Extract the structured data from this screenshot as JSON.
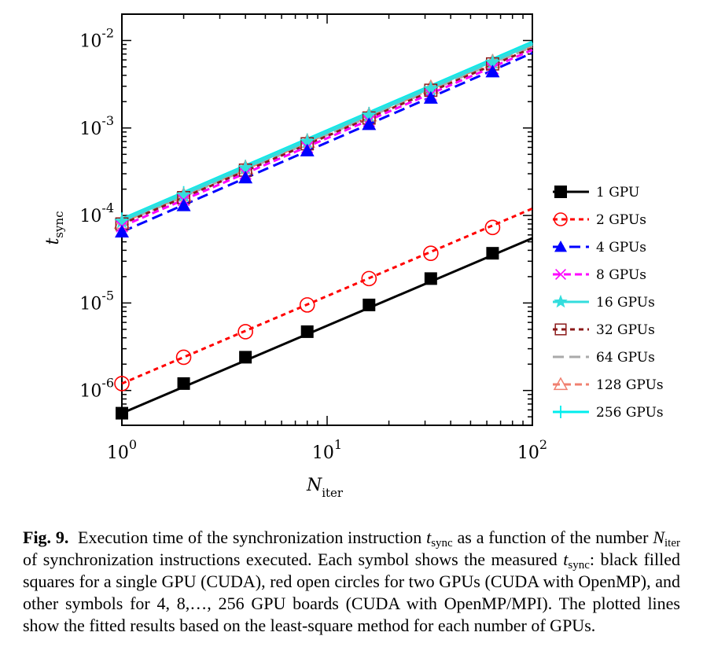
{
  "chart_data": {
    "type": "line",
    "xscale": "log",
    "yscale": "log",
    "xlim": [
      1,
      100
    ],
    "ylim": [
      4e-07,
      0.02
    ],
    "xticks": [
      {
        "value": 1,
        "base": "10",
        "exp": "0"
      },
      {
        "value": 10,
        "base": "10",
        "exp": "1"
      },
      {
        "value": 100,
        "base": "10",
        "exp": "2"
      }
    ],
    "yticks": [
      {
        "value": 1e-06,
        "base": "10",
        "exp": "-6"
      },
      {
        "value": 1e-05,
        "base": "10",
        "exp": "-5"
      },
      {
        "value": 0.0001,
        "base": "10",
        "exp": "-4"
      },
      {
        "value": 0.001,
        "base": "10",
        "exp": "-3"
      },
      {
        "value": 0.01,
        "base": "10",
        "exp": "-2"
      }
    ],
    "xlabel": {
      "main": "N",
      "sub": "iter"
    },
    "ylabel": {
      "main": "t",
      "sub": "sync"
    },
    "legend_position": "outside-right",
    "x": [
      1,
      2,
      4,
      8,
      16,
      32,
      64
    ],
    "series": [
      {
        "name": "1 GPU",
        "color": "#000000",
        "marker": "filled-square",
        "dash": "solid",
        "values": [
          5.5e-07,
          1.2e-06,
          2.4e-06,
          4.7e-06,
          9.5e-06,
          1.9e-05,
          3.7e-05
        ],
        "fit": [
          5.5e-07,
          5.5e-05
        ]
      },
      {
        "name": "2 GPUs",
        "color": "#ff0000",
        "marker": "open-circle",
        "dash": "short-dash",
        "values": [
          1.2e-06,
          2.4e-06,
          4.7e-06,
          9.5e-06,
          1.9e-05,
          3.7e-05,
          7.3e-05
        ],
        "fit": [
          1.2e-06,
          0.00012
        ]
      },
      {
        "name": "4 GPUs",
        "color": "#0000ff",
        "marker": "filled-triangle",
        "dash": "long-dash",
        "values": [
          6.5e-05,
          0.00013,
          0.00027,
          0.00055,
          0.0011,
          0.0022,
          0.0044
        ],
        "fit": [
          6.5e-05,
          0.0072
        ]
      },
      {
        "name": "8 GPUs",
        "color": "#ff00ff",
        "marker": "x",
        "dash": "dash",
        "values": [
          7.5e-05,
          0.00015,
          0.0003,
          0.0006,
          0.0012,
          0.0024,
          0.0048
        ],
        "fit": [
          7.5e-05,
          0.0078
        ]
      },
      {
        "name": "16 GPUs",
        "color": "#33dddd",
        "marker": "star",
        "dash": "solid",
        "values": [
          8.5e-05,
          0.00017,
          0.00035,
          0.0007,
          0.0014,
          0.0028,
          0.0056
        ],
        "fit": [
          8.8e-05,
          0.0092
        ]
      },
      {
        "name": "32 GPUs",
        "color": "#8b1a1a",
        "marker": "open-square",
        "dash": "short-dash",
        "values": [
          8e-05,
          0.00016,
          0.00033,
          0.00066,
          0.0013,
          0.0027,
          0.0054
        ],
        "fit": [
          8e-05,
          0.0082
        ]
      },
      {
        "name": "64 GPUs",
        "color": "#aaaaaa",
        "marker": "none",
        "dash": "long-dash",
        "values": [
          8.2e-05,
          0.000165,
          0.00034,
          0.00068,
          0.00135,
          0.0027,
          0.0055
        ],
        "fit": [
          8.2e-05,
          0.0085
        ]
      },
      {
        "name": "128 GPUs",
        "color": "#f08070",
        "marker": "open-triangle",
        "dash": "dash",
        "values": [
          8.3e-05,
          0.00017,
          0.00035,
          0.0007,
          0.0014,
          0.0029,
          0.0057
        ],
        "fit": [
          8.3e-05,
          0.0088
        ]
      },
      {
        "name": "256 GPUs",
        "color": "#00eeee",
        "marker": "plus",
        "dash": "solid",
        "values": [
          9e-05,
          0.00018,
          0.00036,
          0.00072,
          0.00145,
          0.0029,
          0.0058
        ],
        "fit": [
          9e-05,
          0.0095
        ]
      }
    ]
  },
  "caption": {
    "label": "Fig. 9.",
    "p1": "Execution time of the synchronization instruction ",
    "v1": "t",
    "v1_sub": "sync",
    "p2": " as a function of the number ",
    "v2": "N",
    "v2_sub": "iter",
    "p3": " of synchronization instructions executed. Each symbol shows the measured ",
    "v3": "t",
    "v3_sub": "sync",
    "p4": ": black filled squares for a single GPU (CUDA), red open circles for two GPUs (CUDA with OpenMP), and other symbols for 4, 8,…, 256 GPU boards (CUDA with OpenMP/MPI). The plotted lines show the fitted results based on the least-square method for each number of GPUs."
  }
}
